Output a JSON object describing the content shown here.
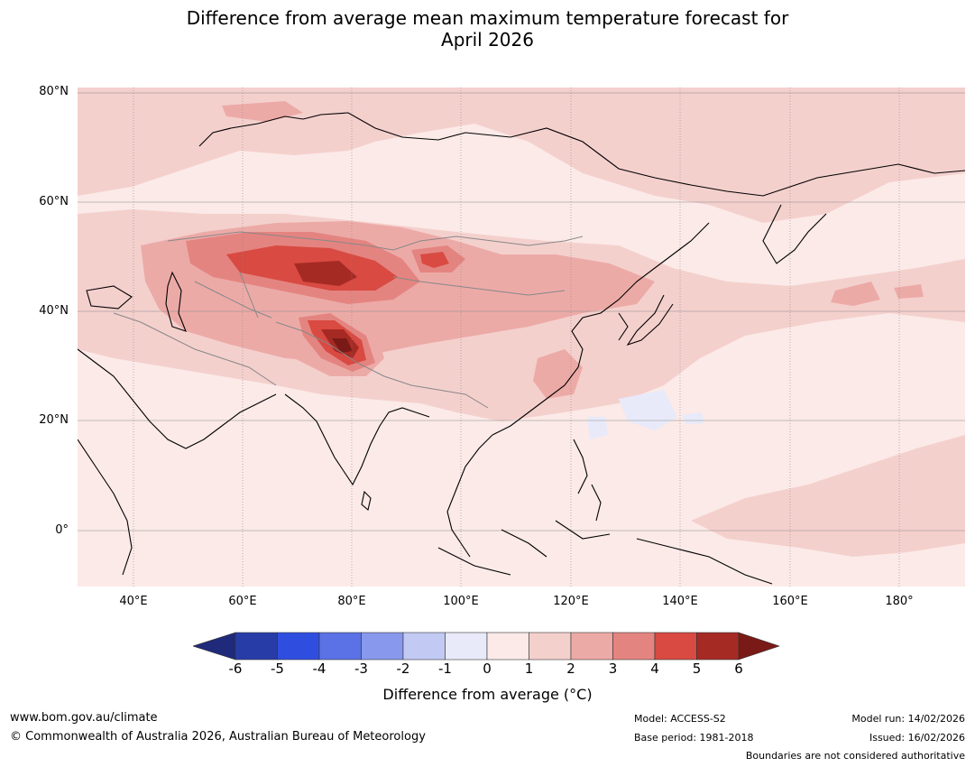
{
  "title": {
    "line1": "Difference from average mean maximum temperature forecast for",
    "line2": "April 2026"
  },
  "map": {
    "lat_labels": [
      "80°N",
      "60°N",
      "40°N",
      "20°N",
      "0°"
    ],
    "lon_labels": [
      "40°E",
      "60°E",
      "80°E",
      "100°E",
      "120°E",
      "140°E",
      "160°E",
      "180°"
    ],
    "region": "Asia"
  },
  "colorbar": {
    "title": "Difference from average (°C)",
    "tick_labels": [
      "-6",
      "-5",
      "-4",
      "-3",
      "-2",
      "-1",
      "0",
      "1",
      "2",
      "3",
      "4",
      "5",
      "6"
    ],
    "colors": [
      "#1f2a7a",
      "#283ca8",
      "#2f4ee0",
      "#5a72e6",
      "#8898ec",
      "#c2caf4",
      "#e8eafa",
      "#fbeae8",
      "#f4d0cd",
      "#ecaaa7",
      "#e48480",
      "#d84a42",
      "#a62a24",
      "#7a1a16"
    ]
  },
  "footer": {
    "website": "www.bom.gov.au/climate",
    "copyright": "© Commonwealth of Australia 2026, Australian Bureau of Meteorology",
    "model": "Model: ACCESS-S2",
    "base_period": "Base period: 1981-2018",
    "model_run": "Model run: 14/02/2026",
    "issued": "Issued: 16/02/2026",
    "disclaimer": "Boundaries are not considered authoritative"
  }
}
